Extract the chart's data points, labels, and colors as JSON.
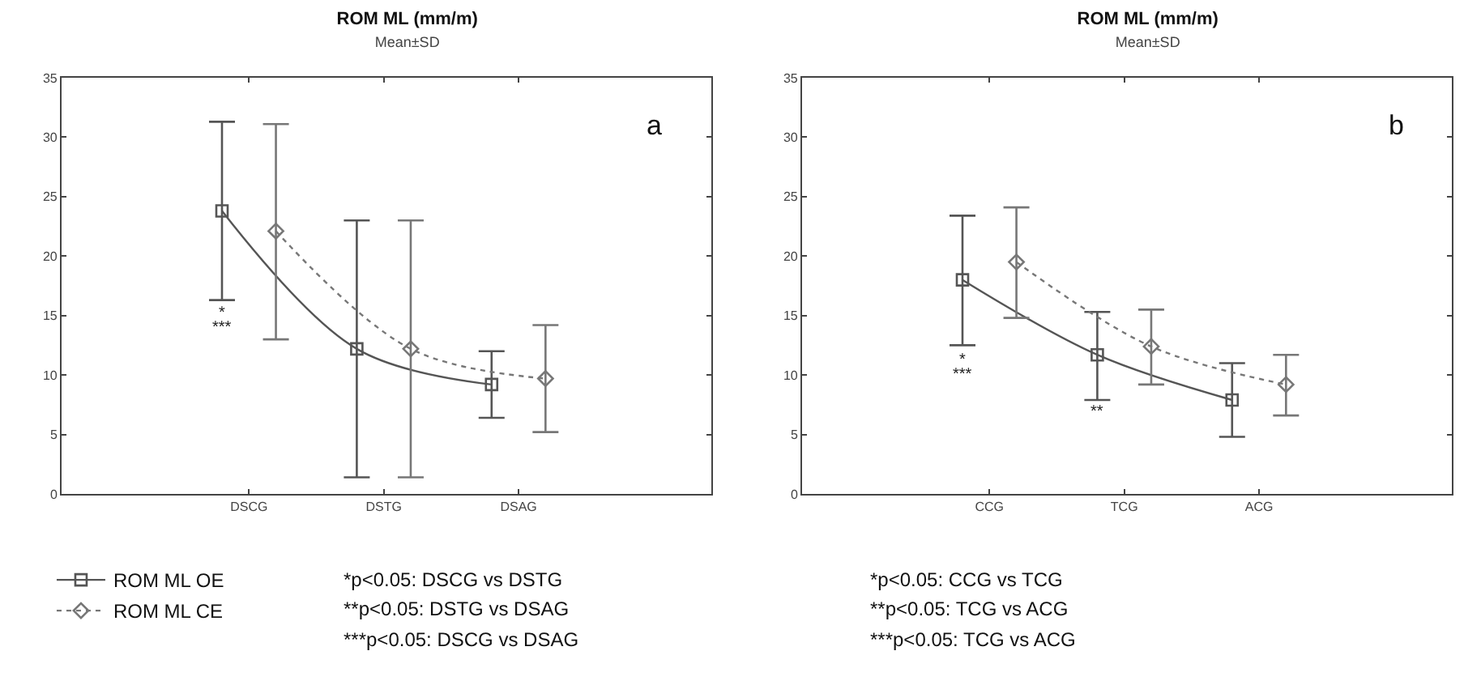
{
  "chart_data": [
    {
      "type": "line",
      "title": "ROM ML (mm/m)",
      "subtitle": "Mean±SD",
      "categories": [
        "DSCG",
        "DSTG",
        "DSAG"
      ],
      "series": [
        {
          "name": "ROM ML OE",
          "color": "#555555",
          "marker": "square",
          "line_style": "solid",
          "values": [
            23.8,
            12.2,
            9.2
          ],
          "errors": [
            [
              16.3,
              31.3
            ],
            [
              1.4,
              23.0
            ],
            [
              6.4,
              12.0
            ]
          ]
        },
        {
          "name": "ROM ML CE",
          "color": "#777777",
          "marker": "diamond",
          "line_style": "dotted",
          "values": [
            22.1,
            12.2,
            9.7
          ],
          "errors": [
            [
              13.0,
              31.1
            ],
            [
              1.4,
              23.0
            ],
            [
              5.2,
              14.2
            ]
          ]
        }
      ],
      "ylim": [
        0,
        35
      ],
      "yticks": [
        0,
        5,
        10,
        15,
        20,
        25,
        30,
        35
      ],
      "grid": false,
      "legend": "bottom left",
      "annotations": [
        "a",
        "*",
        "***",
        "*p<0.05: DSCG vs DSTG",
        "**p<0.05: DSTG vs DSAG",
        "***p<0.05: DSCG vs DSAG"
      ]
    },
    {
      "type": "line",
      "title": "ROM ML (mm/m)",
      "subtitle": "Mean±SD",
      "categories": [
        "CCG",
        "TCG",
        "ACG"
      ],
      "series": [
        {
          "color": "#555555",
          "marker": "square",
          "line_style": "solid",
          "values": [
            18.0,
            11.7,
            7.9
          ],
          "errors": [
            [
              12.5,
              23.4
            ],
            [
              7.9,
              15.3
            ],
            [
              4.8,
              11.0
            ]
          ]
        },
        {
          "color": "#777777",
          "marker": "diamond",
          "line_style": "dotted",
          "values": [
            19.5,
            12.4,
            9.2
          ],
          "errors": [
            [
              14.8,
              24.1
            ],
            [
              9.2,
              15.5
            ],
            [
              6.6,
              11.7
            ]
          ]
        }
      ],
      "ylim": [
        0,
        35
      ],
      "yticks": [
        0,
        5,
        10,
        15,
        20,
        25,
        30,
        35
      ],
      "grid": false,
      "legend": false,
      "annotations": [
        "b",
        "*",
        "***",
        "**",
        "*p<0.05: CCG vs TCG",
        "**p<0.05: TCG vs ACG",
        "***p<0.05: TCG vs ACG"
      ]
    }
  ]
}
